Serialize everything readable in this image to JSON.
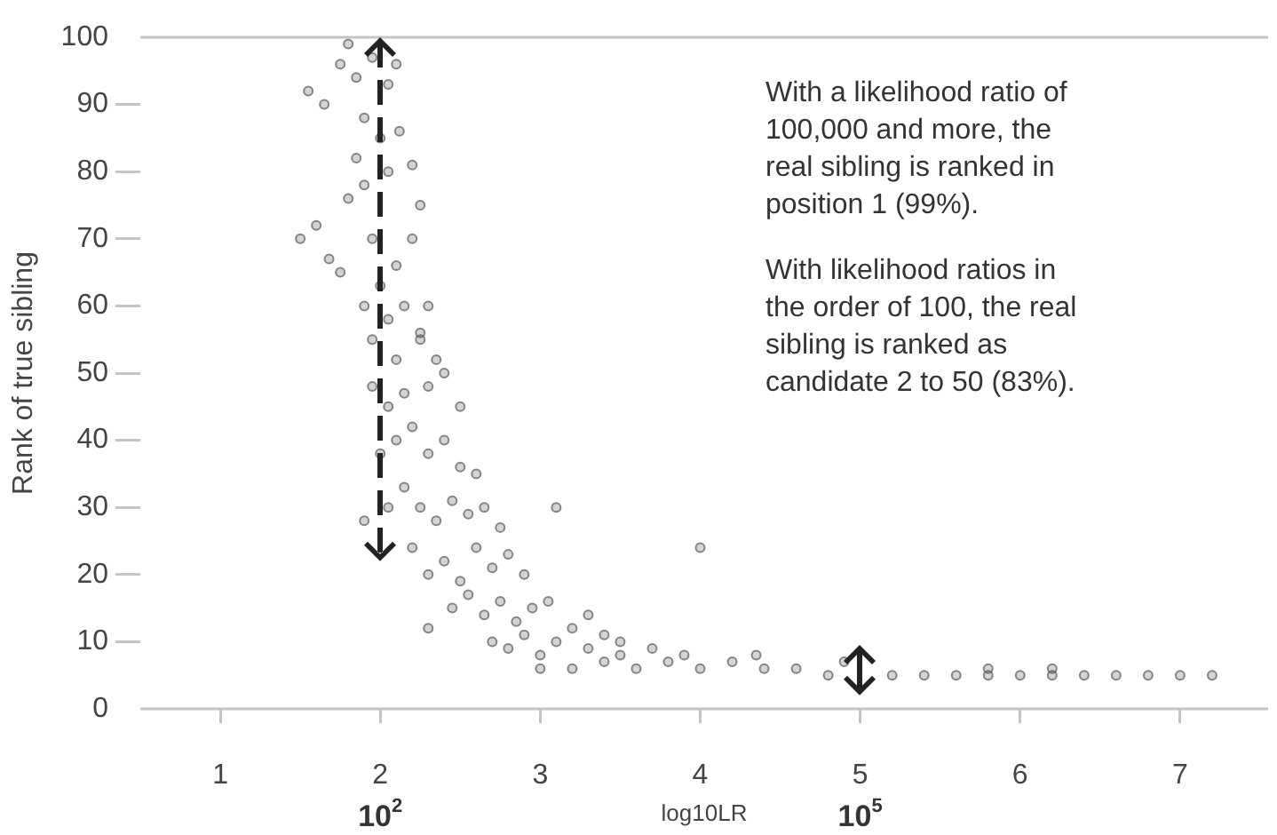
{
  "chart_data": {
    "type": "scatter",
    "xlabel": "log10LR",
    "ylabel": "Rank of true sibling",
    "annotations": [
      "With a likelihood ratio of 100,000 and more, the real sibling is ranked in position 1 (99%).",
      "With likelihood ratios in the order of 100, the real sibling is ranked as candidate 2 to 50 (83%)."
    ],
    "xlim": [
      0.5,
      7.55
    ],
    "xticks": [
      1,
      2,
      3,
      4,
      5,
      6,
      7
    ],
    "x2lim": [
      3.162,
      35481000
    ],
    "x2ticks": [
      {
        "value": 100,
        "label": "10$^{2}$"
      },
      {
        "value": 100000,
        "label": "10$^{5}$"
      }
    ],
    "log": "x2",
    "ylim": [
      0,
      100
    ],
    "yticks": [
      0,
      10,
      20,
      30,
      40,
      50,
      60,
      70,
      80,
      90,
      100
    ],
    "grid": false,
    "legend": false,
    "marker": "circle",
    "series": [
      {
        "color": "#555555",
        "x": [
          1.55,
          1.65,
          1.75,
          1.8,
          1.85,
          1.9,
          1.95,
          2.05,
          2.1,
          1.6,
          1.68,
          1.75,
          1.8,
          1.85,
          1.9,
          1.95,
          2.0,
          2.05,
          2.12,
          2.2,
          2.25,
          1.9,
          1.95,
          2.0,
          2.05,
          2.1,
          2.15,
          2.2,
          2.3,
          2.35,
          1.95,
          2.05,
          2.1,
          2.15,
          2.25,
          2.3,
          2.4,
          2.5,
          2.0,
          2.1,
          2.2,
          2.3,
          2.4,
          2.5,
          2.6,
          1.9,
          2.05,
          2.15,
          2.25,
          2.35,
          2.45,
          2.55,
          2.65,
          2.75,
          2.2,
          2.3,
          2.4,
          2.5,
          2.6,
          2.7,
          2.8,
          2.9,
          2.3,
          2.45,
          2.55,
          2.65,
          2.75,
          2.85,
          2.95,
          3.05,
          2.7,
          2.8,
          2.9,
          3.0,
          3.1,
          3.2,
          3.3,
          3.4,
          3.0,
          3.2,
          3.4,
          3.6,
          3.8,
          4.0,
          3.5,
          3.7,
          3.9,
          4.2,
          4.4,
          4.6,
          4.8,
          5.0,
          5.2,
          5.4,
          5.6,
          5.8,
          6.0,
          6.2,
          6.4,
          6.6,
          6.8,
          7.0,
          7.2,
          3.1,
          4.0,
          4.35,
          4.9,
          5.8,
          6.2,
          3.3,
          3.5,
          2.25,
          1.5
        ],
        "values": [
          92,
          90,
          96,
          99,
          94,
          88,
          97,
          93,
          96,
          72,
          67,
          65,
          76,
          82,
          78,
          70,
          85,
          80,
          86,
          81,
          75,
          60,
          55,
          63,
          58,
          66,
          60,
          70,
          60,
          52,
          48,
          45,
          52,
          47,
          55,
          48,
          50,
          45,
          38,
          40,
          42,
          38,
          40,
          36,
          35,
          28,
          30,
          33,
          30,
          28,
          31,
          29,
          30,
          27,
          24,
          20,
          22,
          19,
          24,
          21,
          23,
          20,
          12,
          15,
          17,
          14,
          16,
          13,
          15,
          16,
          10,
          9,
          11,
          8,
          10,
          12,
          9,
          11,
          6,
          6,
          7,
          6,
          7,
          6,
          8,
          9,
          8,
          7,
          6,
          6,
          5,
          null,
          5,
          5,
          5,
          5,
          5,
          5,
          5,
          5,
          5,
          5,
          5,
          30,
          24,
          8,
          7,
          6,
          6,
          14,
          10,
          56,
          70
        ]
      }
    ]
  }
}
